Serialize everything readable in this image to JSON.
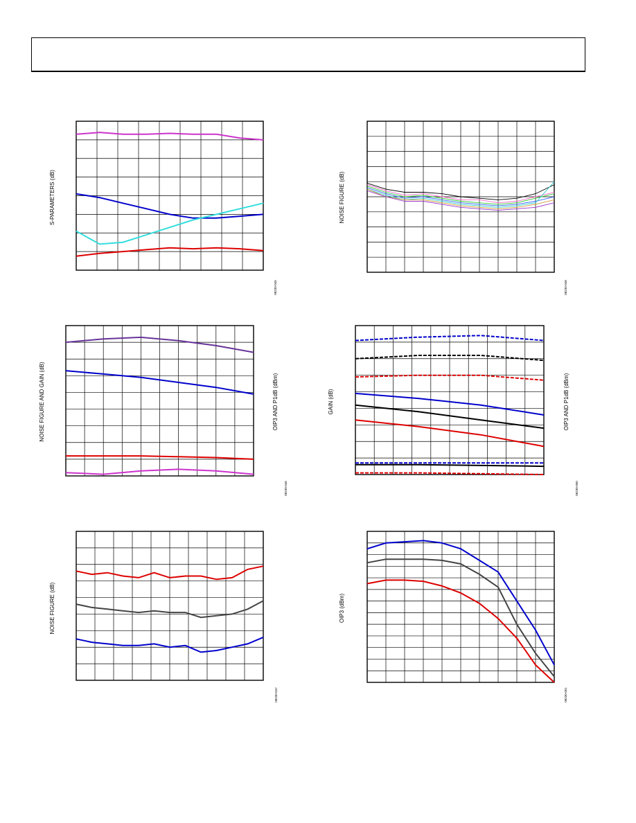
{
  "charts": [
    {
      "id": "c1",
      "ylabel": "S-PARAMETERS (dB)",
      "ylabel_right": "",
      "code": "08230-045",
      "cols": 9,
      "rows": 8,
      "chart_data": {
        "type": "line",
        "ylim": [
          0,
          8
        ],
        "series": [
          {
            "color": "#cc33cc",
            "values": [
              7.3,
              7.4,
              7.3,
              7.3,
              7.35,
              7.3,
              7.3,
              7.1,
              7.0
            ]
          },
          {
            "color": "#0000cc",
            "values": [
              4.1,
              3.9,
              3.6,
              3.3,
              3.0,
              2.8,
              2.8,
              2.9,
              3.0
            ]
          },
          {
            "color": "#33dddd",
            "values": [
              2.1,
              1.4,
              1.5,
              1.9,
              2.3,
              2.7,
              3.0,
              3.3,
              3.6
            ]
          },
          {
            "color": "#dd0000",
            "values": [
              0.75,
              0.9,
              1.0,
              1.1,
              1.2,
              1.15,
              1.2,
              1.15,
              1.05
            ]
          }
        ]
      }
    },
    {
      "id": "c2",
      "ylabel": "NOISE FIGURE (dB)",
      "ylabel_right": "",
      "code": "08230-048",
      "cols": 10,
      "rows": 10,
      "chart_data": {
        "type": "line",
        "ylim": [
          0,
          10
        ],
        "series": [
          {
            "color": "#000000",
            "values": [
              5.9,
              5.5,
              5.3,
              5.3,
              5.2,
              5.0,
              4.9,
              4.8,
              4.9,
              5.2,
              5.8
            ]
          },
          {
            "color": "#ff66cc",
            "values": [
              5.8,
              5.4,
              5.1,
              5.2,
              5.0,
              4.8,
              4.8,
              4.6,
              4.7,
              5.0,
              5.3
            ]
          },
          {
            "color": "#33cc33",
            "values": [
              5.7,
              5.3,
              5.0,
              5.1,
              4.9,
              4.7,
              4.6,
              4.5,
              4.6,
              4.9,
              5.2
            ]
          },
          {
            "color": "#3366ff",
            "values": [
              5.6,
              5.2,
              4.9,
              5.0,
              4.8,
              4.6,
              4.5,
              4.4,
              4.5,
              4.7,
              5.0
            ]
          },
          {
            "color": "#33cccc",
            "values": [
              5.5,
              5.1,
              4.8,
              4.9,
              4.7,
              4.5,
              4.4,
              4.3,
              4.4,
              4.6,
              6.0
            ]
          },
          {
            "color": "#cc9933",
            "values": [
              5.5,
              5.0,
              4.8,
              4.8,
              4.6,
              4.4,
              4.3,
              4.2,
              4.3,
              4.5,
              4.8
            ]
          },
          {
            "color": "#9933cc",
            "values": [
              5.4,
              5.0,
              4.7,
              4.7,
              4.5,
              4.3,
              4.2,
              4.1,
              4.2,
              4.3,
              4.6
            ]
          }
        ]
      }
    },
    {
      "id": "c3",
      "ylabel": "NOISE FIGURE AND GAIN (dB)",
      "ylabel_right": "OIP3 AND P1dB (dBm)",
      "code": "08230-046",
      "cols": 10,
      "rows": 9,
      "chart_data": {
        "type": "line",
        "ylim": [
          0,
          9
        ],
        "series": [
          {
            "color": "#663399",
            "values": [
              8.0,
              8.2,
              8.3,
              8.1,
              7.8,
              7.4
            ]
          },
          {
            "color": "#0000cc",
            "values": [
              6.3,
              6.1,
              5.9,
              5.6,
              5.3,
              4.9
            ]
          },
          {
            "color": "#dd0000",
            "values": [
              1.2,
              1.2,
              1.2,
              1.15,
              1.1,
              1.0
            ]
          },
          {
            "color": "#cc33cc",
            "values": [
              0.2,
              0.1,
              0.3,
              0.4,
              0.3,
              0.1
            ]
          }
        ]
      }
    },
    {
      "id": "c4",
      "ylabel": "GAIN (dB)",
      "ylabel_right": "OIP3 AND P1dB (dBm)",
      "code": "08230-050",
      "cols": 10,
      "rows": 9,
      "chart_data": {
        "type": "line",
        "ylim": [
          0,
          9
        ],
        "series": [
          {
            "color": "#0000cc",
            "dash": true,
            "values": [
              8.1,
              8.3,
              8.4,
              8.1
            ]
          },
          {
            "color": "#000000",
            "dash": true,
            "values": [
              7.0,
              7.2,
              7.2,
              6.9
            ]
          },
          {
            "color": "#dd0000",
            "dash": true,
            "values": [
              5.9,
              6.0,
              6.0,
              5.7
            ]
          },
          {
            "color": "#0000cc",
            "values": [
              4.9,
              4.6,
              4.2,
              3.6
            ]
          },
          {
            "color": "#000000",
            "values": [
              4.2,
              3.8,
              3.3,
              2.8
            ]
          },
          {
            "color": "#dd0000",
            "values": [
              3.3,
              2.9,
              2.4,
              1.7
            ]
          },
          {
            "color": "#0000cc",
            "dash": true,
            "values": [
              0.7,
              0.7,
              0.7,
              0.7
            ]
          },
          {
            "color": "#000000",
            "values": [
              0.6,
              0.6,
              0.55,
              0.5
            ]
          },
          {
            "color": "#dd0000",
            "dash": true,
            "values": [
              0.1,
              0.1,
              0.05,
              0.0
            ]
          }
        ]
      }
    },
    {
      "id": "c5",
      "ylabel": "NOISE FIGURE (dB)",
      "ylabel_right": "",
      "code": "08230-047",
      "cols": 10,
      "rows": 9,
      "chart_data": {
        "type": "line",
        "ylim": [
          0,
          9
        ],
        "series": [
          {
            "color": "#dd0000",
            "values": [
              6.6,
              6.4,
              6.5,
              6.3,
              6.2,
              6.5,
              6.2,
              6.3,
              6.3,
              6.1,
              6.2,
              6.7,
              6.9
            ]
          },
          {
            "color": "#444444",
            "values": [
              4.6,
              4.4,
              4.3,
              4.2,
              4.1,
              4.2,
              4.1,
              4.1,
              3.8,
              3.9,
              4.0,
              4.3,
              4.8
            ]
          },
          {
            "color": "#0000cc",
            "values": [
              2.5,
              2.3,
              2.2,
              2.1,
              2.1,
              2.2,
              2.0,
              2.1,
              1.7,
              1.8,
              2.0,
              2.2,
              2.6
            ]
          }
        ]
      }
    },
    {
      "id": "c6",
      "ylabel": "OIP3 (dBm)",
      "ylabel_right": "",
      "code": "08230-051",
      "cols": 10,
      "rows": 13,
      "chart_data": {
        "type": "line",
        "ylim": [
          0,
          13
        ],
        "series": [
          {
            "color": "#0000cc",
            "values": [
              11.5,
              12.0,
              12.1,
              12.2,
              12.0,
              11.5,
              10.5,
              9.5,
              7.0,
              4.5,
              1.5
            ]
          },
          {
            "color": "#444444",
            "values": [
              10.3,
              10.6,
              10.6,
              10.6,
              10.5,
              10.2,
              9.3,
              8.2,
              5.0,
              2.5,
              0.5
            ]
          },
          {
            "color": "#dd0000",
            "values": [
              8.5,
              8.8,
              8.8,
              8.7,
              8.3,
              7.7,
              6.8,
              5.5,
              3.8,
              1.5,
              0.0
            ]
          }
        ]
      }
    }
  ]
}
